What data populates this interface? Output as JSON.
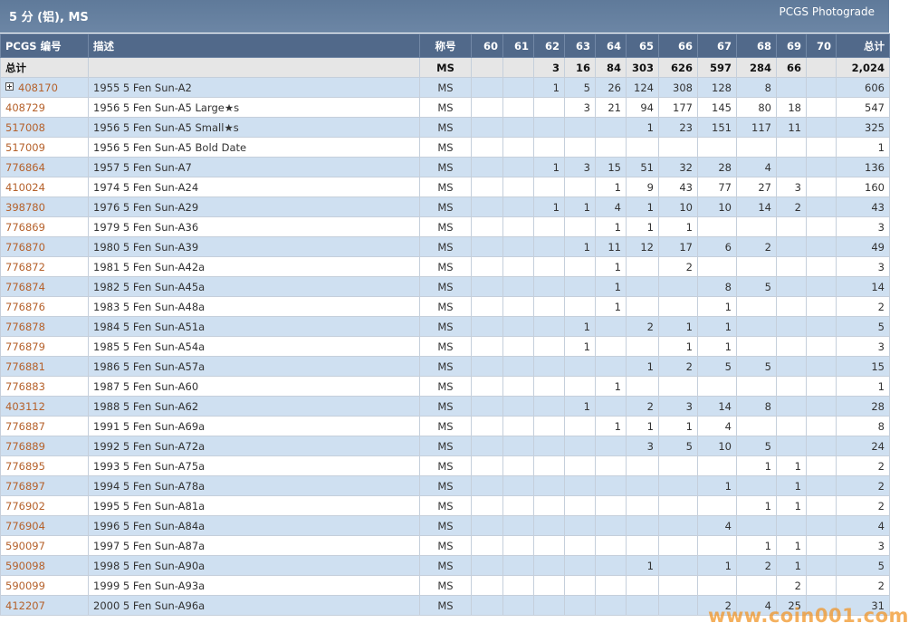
{
  "header": {
    "title": "5 分 (铝), MS",
    "link": "PCGS Photograde"
  },
  "table": {
    "columns": [
      "PCGS 编号",
      "描述",
      "称号",
      "60",
      "61",
      "62",
      "63",
      "64",
      "65",
      "66",
      "67",
      "68",
      "69",
      "70",
      "总计"
    ],
    "total": [
      "总计",
      null,
      "MS",
      null,
      null,
      "3",
      "16",
      "84",
      "303",
      "626",
      "597",
      "284",
      "66",
      null,
      "2,024"
    ],
    "rows": [
      [
        "408170",
        "1955 5 Fen Sun-A2",
        "MS",
        null,
        null,
        "1",
        "5",
        "26",
        "124",
        "308",
        "128",
        "8",
        null,
        null,
        "606"
      ],
      [
        "408729",
        "1956 5 Fen Sun-A5 Large★s",
        "MS",
        null,
        null,
        null,
        "3",
        "21",
        "94",
        "177",
        "145",
        "80",
        "18",
        null,
        "547"
      ],
      [
        "517008",
        "1956 5 Fen Sun-A5 Small★s",
        "MS",
        null,
        null,
        null,
        null,
        null,
        "1",
        "23",
        "151",
        "117",
        "11",
        null,
        "325"
      ],
      [
        "517009",
        "1956 5 Fen Sun-A5 Bold Date",
        "MS",
        null,
        null,
        null,
        null,
        null,
        null,
        null,
        null,
        null,
        null,
        null,
        "1"
      ],
      [
        "776864",
        "1957 5 Fen Sun-A7",
        "MS",
        null,
        null,
        "1",
        "3",
        "15",
        "51",
        "32",
        "28",
        "4",
        null,
        null,
        "136"
      ],
      [
        "410024",
        "1974 5 Fen Sun-A24",
        "MS",
        null,
        null,
        null,
        null,
        "1",
        "9",
        "43",
        "77",
        "27",
        "3",
        null,
        "160"
      ],
      [
        "398780",
        "1976 5 Fen Sun-A29",
        "MS",
        null,
        null,
        "1",
        "1",
        "4",
        "1",
        "10",
        "10",
        "14",
        "2",
        null,
        "43"
      ],
      [
        "776869",
        "1979 5 Fen Sun-A36",
        "MS",
        null,
        null,
        null,
        null,
        "1",
        "1",
        "1",
        null,
        null,
        null,
        null,
        "3"
      ],
      [
        "776870",
        "1980 5 Fen Sun-A39",
        "MS",
        null,
        null,
        null,
        "1",
        "11",
        "12",
        "17",
        "6",
        "2",
        null,
        null,
        "49"
      ],
      [
        "776872",
        "1981 5 Fen Sun-A42a",
        "MS",
        null,
        null,
        null,
        null,
        "1",
        null,
        "2",
        null,
        null,
        null,
        null,
        "3"
      ],
      [
        "776874",
        "1982 5 Fen Sun-A45a",
        "MS",
        null,
        null,
        null,
        null,
        "1",
        null,
        null,
        "8",
        "5",
        null,
        null,
        "14"
      ],
      [
        "776876",
        "1983 5 Fen Sun-A48a",
        "MS",
        null,
        null,
        null,
        null,
        "1",
        null,
        null,
        "1",
        null,
        null,
        null,
        "2"
      ],
      [
        "776878",
        "1984 5 Fen Sun-A51a",
        "MS",
        null,
        null,
        null,
        "1",
        null,
        "2",
        "1",
        "1",
        null,
        null,
        null,
        "5"
      ],
      [
        "776879",
        "1985 5 Fen Sun-A54a",
        "MS",
        null,
        null,
        null,
        "1",
        null,
        null,
        "1",
        "1",
        null,
        null,
        null,
        "3"
      ],
      [
        "776881",
        "1986 5 Fen Sun-A57a",
        "MS",
        null,
        null,
        null,
        null,
        null,
        "1",
        "2",
        "5",
        "5",
        null,
        null,
        "15"
      ],
      [
        "776883",
        "1987 5 Fen Sun-A60",
        "MS",
        null,
        null,
        null,
        null,
        "1",
        null,
        null,
        null,
        null,
        null,
        null,
        "1"
      ],
      [
        "403112",
        "1988 5 Fen Sun-A62",
        "MS",
        null,
        null,
        null,
        "1",
        null,
        "2",
        "3",
        "14",
        "8",
        null,
        null,
        "28"
      ],
      [
        "776887",
        "1991 5 Fen Sun-A69a",
        "MS",
        null,
        null,
        null,
        null,
        "1",
        "1",
        "1",
        "4",
        null,
        null,
        null,
        "8"
      ],
      [
        "776889",
        "1992 5 Fen Sun-A72a",
        "MS",
        null,
        null,
        null,
        null,
        null,
        "3",
        "5",
        "10",
        "5",
        null,
        null,
        "24"
      ],
      [
        "776895",
        "1993 5 Fen Sun-A75a",
        "MS",
        null,
        null,
        null,
        null,
        null,
        null,
        null,
        null,
        "1",
        "1",
        null,
        "2"
      ],
      [
        "776897",
        "1994 5 Fen Sun-A78a",
        "MS",
        null,
        null,
        null,
        null,
        null,
        null,
        null,
        "1",
        null,
        "1",
        null,
        "2"
      ],
      [
        "776902",
        "1995 5 Fen Sun-A81a",
        "MS",
        null,
        null,
        null,
        null,
        null,
        null,
        null,
        null,
        "1",
        "1",
        null,
        "2"
      ],
      [
        "776904",
        "1996 5 Fen Sun-A84a",
        "MS",
        null,
        null,
        null,
        null,
        null,
        null,
        null,
        "4",
        null,
        null,
        null,
        "4"
      ],
      [
        "590097",
        "1997 5 Fen Sun-A87a",
        "MS",
        null,
        null,
        null,
        null,
        null,
        null,
        null,
        null,
        "1",
        "1",
        null,
        "3"
      ],
      [
        "590098",
        "1998 5 Fen Sun-A90a",
        "MS",
        null,
        null,
        null,
        null,
        null,
        "1",
        null,
        "1",
        "2",
        "1",
        null,
        "5"
      ],
      [
        "590099",
        "1999 5 Fen Sun-A93a",
        "MS",
        null,
        null,
        null,
        null,
        null,
        null,
        null,
        null,
        null,
        "2",
        null,
        "2"
      ],
      [
        "412207",
        "2000 5 Fen Sun-A96a",
        "MS",
        null,
        null,
        null,
        null,
        null,
        null,
        null,
        "2",
        "4",
        "25",
        null,
        "31"
      ]
    ]
  },
  "watermark": "www.coin001.com"
}
